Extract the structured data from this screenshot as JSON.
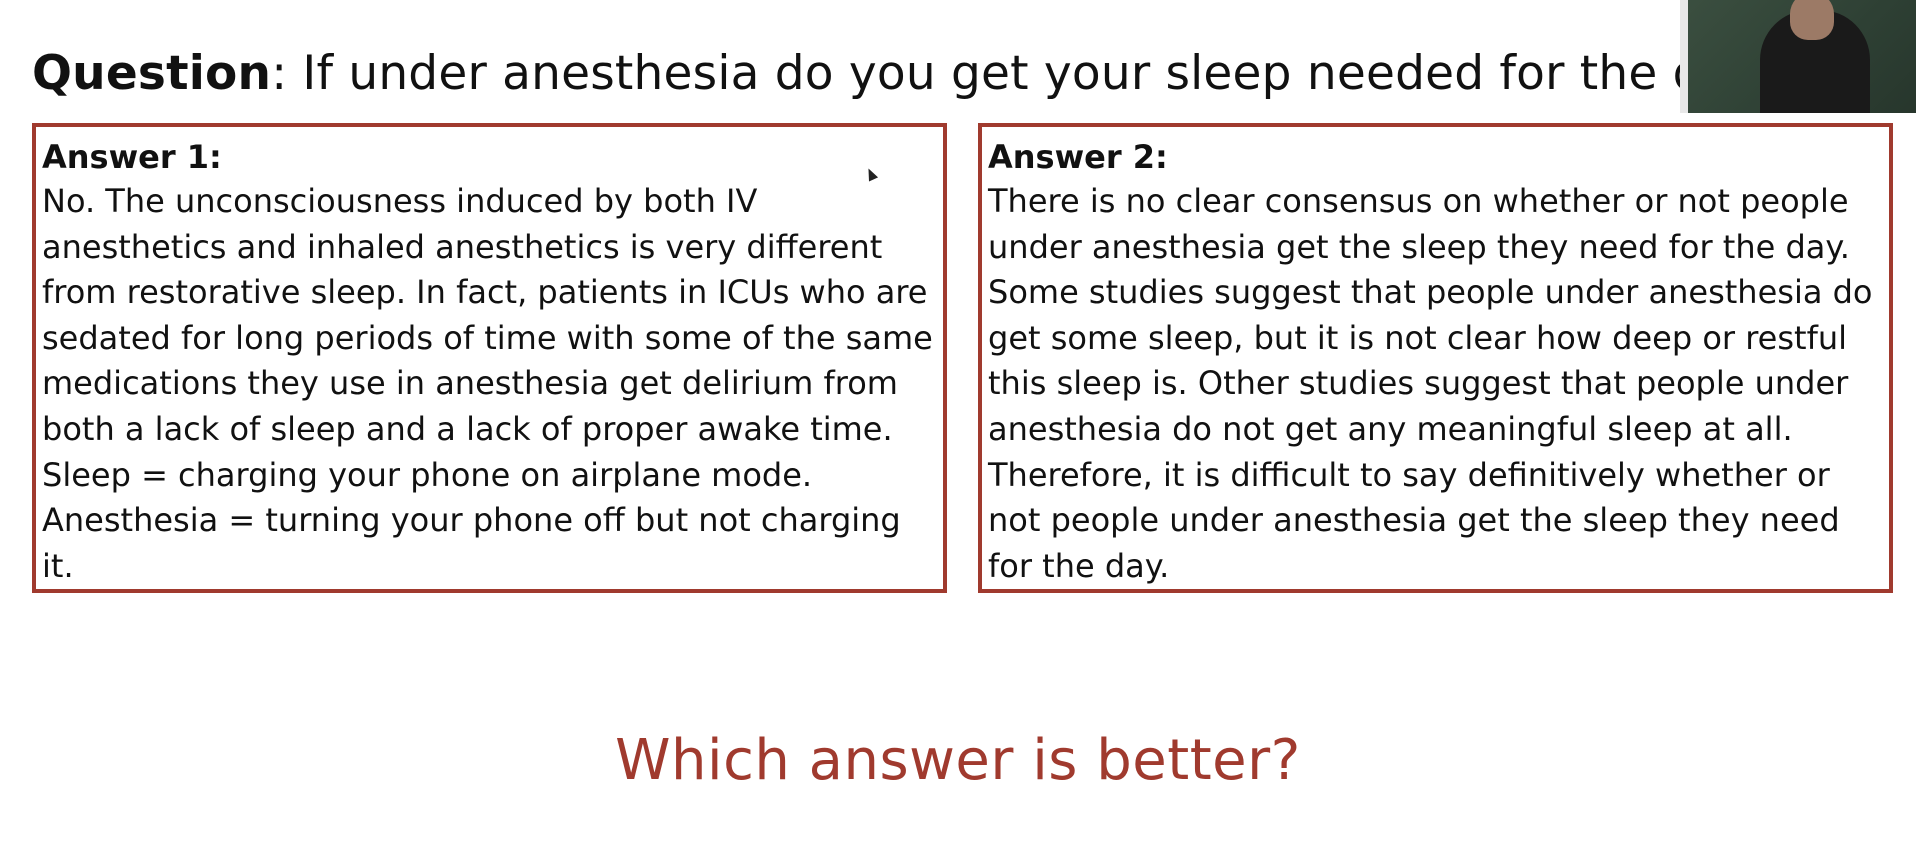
{
  "question": {
    "label": "Question",
    "text": ": If under anesthesia do you get your sleep needed for the day?"
  },
  "answers": [
    {
      "title": "Answer 1:",
      "text": "No. The unconsciousness induced by both IV anesthetics and inhaled anesthetics is very different from restorative sleep. In fact, patients in ICUs who are sedated for long periods of time with some of the same medications they use in anesthesia get delirium from both a lack of sleep and a lack of proper awake time. Sleep = charging your phone on airplane mode. Anesthesia = turning your phone off but not charging it."
    },
    {
      "title": "Answer 2:",
      "text": "There is no clear consensus on whether or not people under anesthesia get the sleep they need for the day. Some studies suggest that people under anesthesia do get some sleep, but it is not clear how deep or restful this sleep is. Other studies suggest that people under anesthesia do not get any meaningful sleep at all. Therefore, it is difficult to say definitively whether or not people under anesthesia get the sleep they need for the day."
    }
  ],
  "prompt": "Which answer is better?",
  "colors": {
    "accent": "#a03a2e"
  }
}
